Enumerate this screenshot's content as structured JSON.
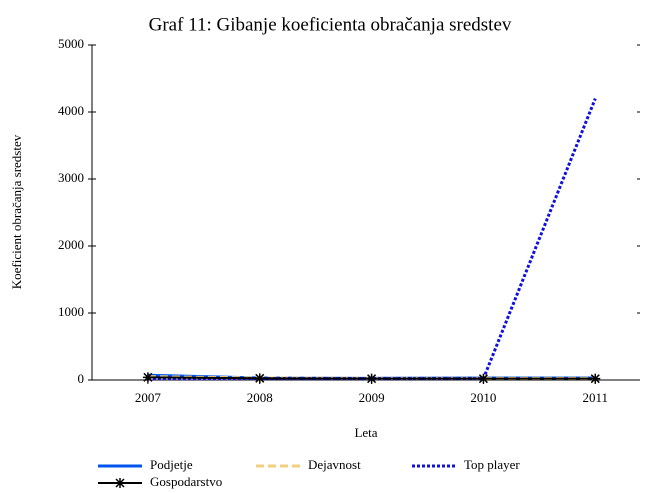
{
  "chart_data": {
    "type": "line",
    "title": "Graf 11: Gibanje koeficienta obračanja sredstev",
    "x_label": "Leta",
    "y_label": "Koeficient obračanja sredstev",
    "x": [
      2007,
      2008,
      2009,
      2010,
      2011
    ],
    "xlim": [
      2006.5,
      2011.4
    ],
    "xticks": [
      2007,
      2008,
      2009,
      2010,
      2011
    ],
    "ylim": [
      0,
      5000
    ],
    "yticks": [
      0,
      1000,
      2000,
      3000,
      4000,
      5000
    ],
    "grid": false,
    "legend": "bottom",
    "series": [
      {
        "name": "Podjetje",
        "color": "#0055ee",
        "style": "solid",
        "values": [
          70,
          30,
          25,
          30,
          30
        ]
      },
      {
        "name": "Dejavnost",
        "color": "#f0d080",
        "style": "dashed",
        "values": [
          50,
          30,
          25,
          25,
          25
        ]
      },
      {
        "name": "Top player",
        "color": "#1010dd",
        "style": "dotted",
        "values": [
          20,
          20,
          20,
          20,
          4200
        ]
      },
      {
        "name": "Gospodarstvo",
        "color": "#000000",
        "style": "star",
        "values": [
          40,
          25,
          20,
          20,
          20
        ]
      }
    ]
  }
}
